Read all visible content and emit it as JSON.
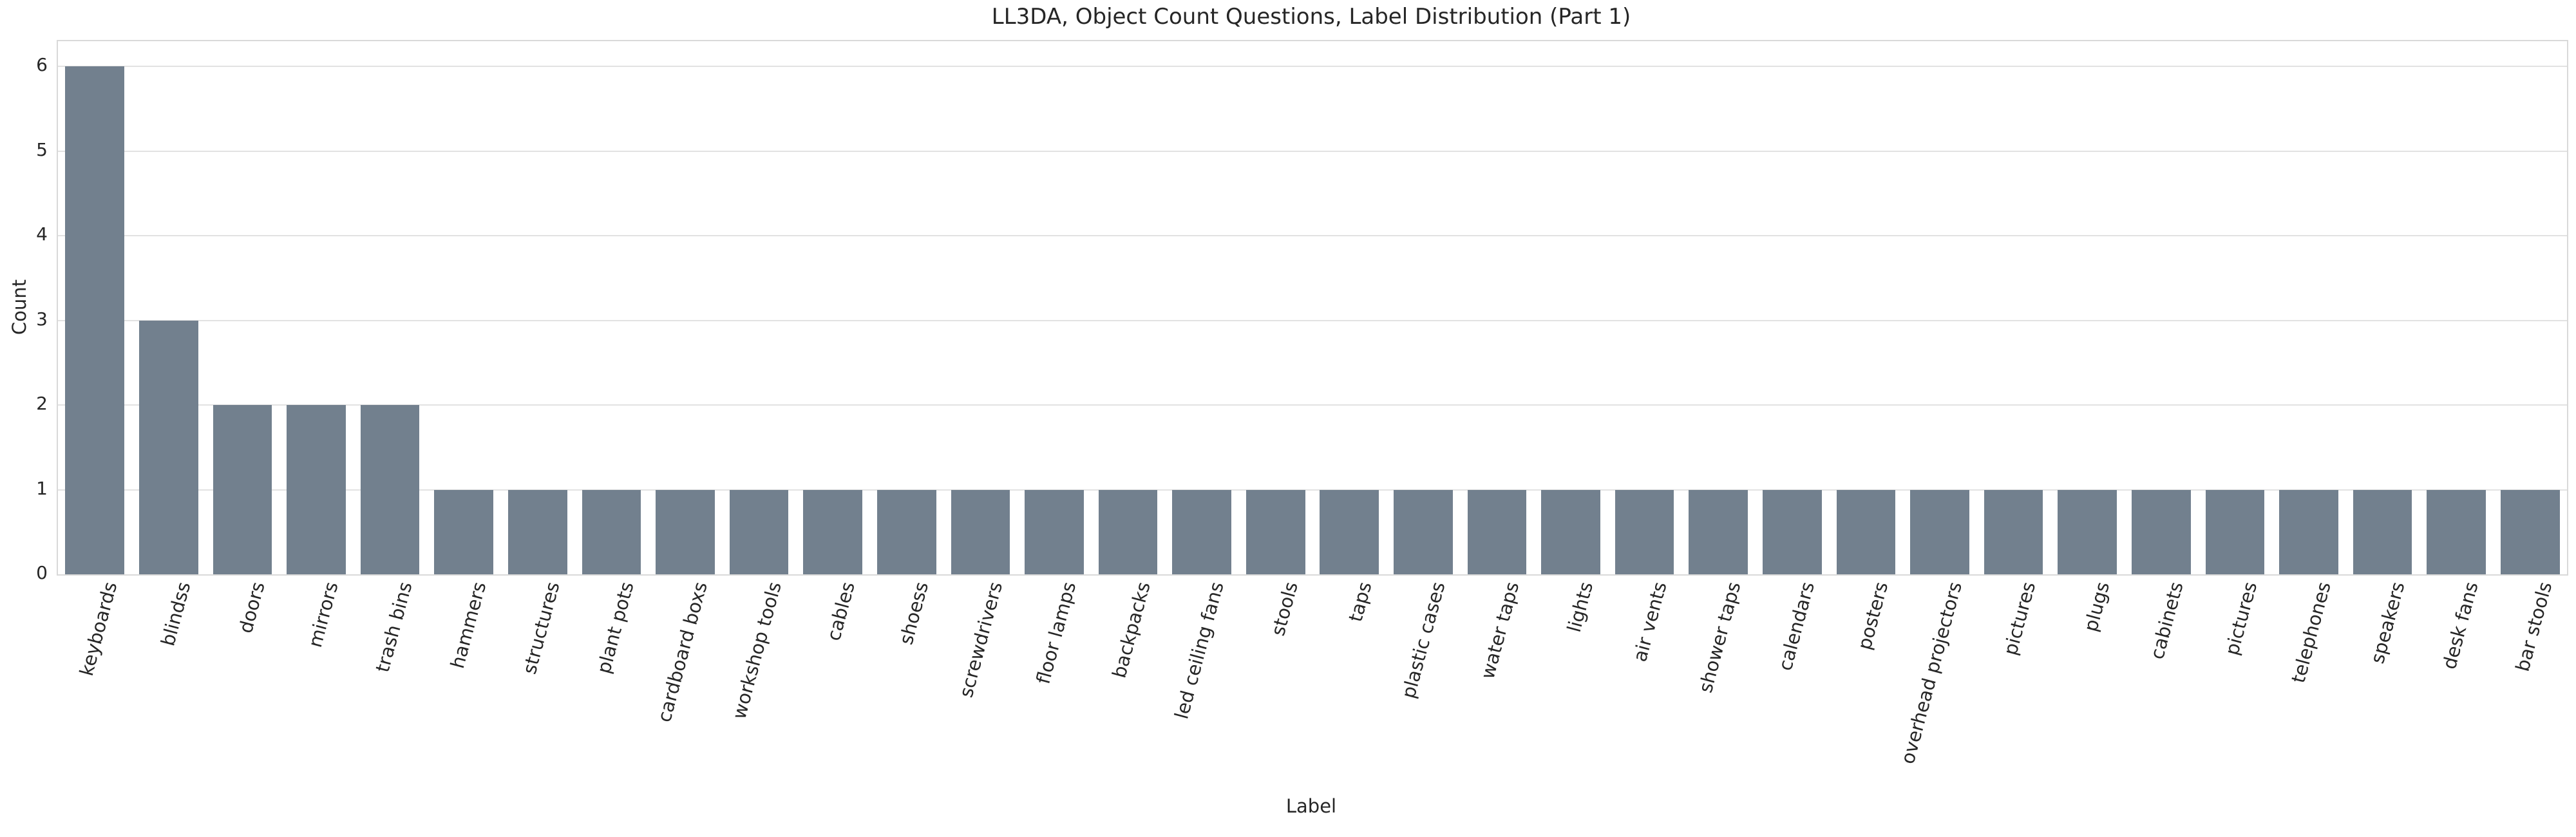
{
  "chart_data": {
    "type": "bar",
    "title": "LL3DA, Object Count Questions, Label Distribution (Part 1)",
    "xlabel": "Label",
    "ylabel": "Count",
    "categories": [
      "keyboards",
      "blindss",
      "doors",
      "mirrors",
      "trash bins",
      "hammers",
      "structures",
      "plant pots",
      "cardboard boxs",
      "workshop tools",
      "cables",
      "shoess",
      "screwdrivers",
      "floor lamps",
      "backpacks",
      "led ceiling fans",
      "stools",
      "taps",
      "plastic cases",
      "water taps",
      "lights",
      "air vents",
      "shower taps",
      "calendars",
      "posters",
      "overhead projectors",
      "pictures",
      "plugs",
      "cabinets",
      "pictures",
      "telephones",
      "speakers",
      "desk fans",
      "bar stools"
    ],
    "values": [
      6,
      3,
      2,
      2,
      2,
      1,
      1,
      1,
      1,
      1,
      1,
      1,
      1,
      1,
      1,
      1,
      1,
      1,
      1,
      1,
      1,
      1,
      1,
      1,
      1,
      1,
      1,
      1,
      1,
      1,
      1,
      1,
      1,
      1
    ],
    "yticks": [
      0,
      1,
      2,
      3,
      4,
      5,
      6
    ],
    "ylim": [
      0,
      6.3
    ],
    "grid": true,
    "legend": null,
    "bar_relative_width": 0.8,
    "tick_rotation_deg": 75,
    "colors": {
      "bar": "#72808e",
      "grid": "#e2e2e2",
      "spine": "#d9d9d9",
      "text": "#262626",
      "background": "#ffffff"
    }
  }
}
